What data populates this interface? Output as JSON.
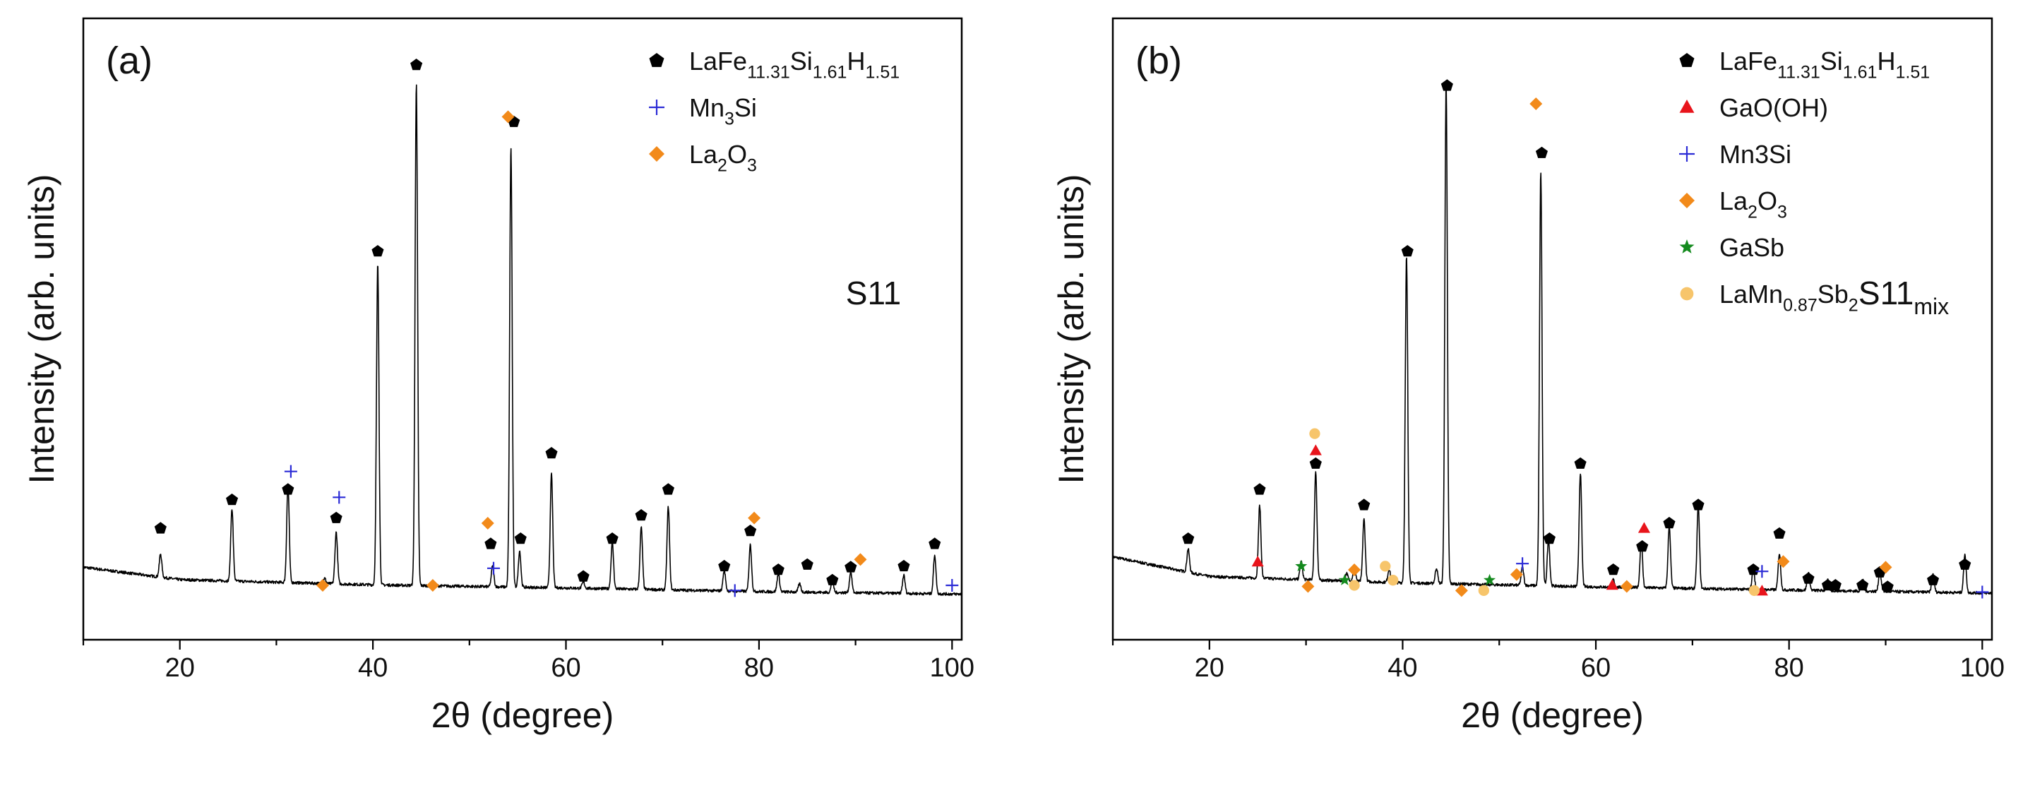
{
  "figure": {
    "description": "Two-panel XRD patterns",
    "xlabel": "2θ (degree)",
    "ylabel": "Intensity (arb. units)"
  },
  "chart_data": [
    {
      "type": "line",
      "panel_label": "(a)",
      "sample_label": {
        "base": "S11",
        "sub": ""
      },
      "xlabel": "2θ (degree)",
      "ylabel": "Intensity (arb. units)",
      "xlim": [
        10,
        101
      ],
      "ylim": [
        -8,
        112
      ],
      "xticks": [
        20,
        40,
        60,
        80,
        100
      ],
      "baseline": {
        "x": [
          10,
          20,
          40,
          60,
          80,
          101
        ],
        "y": [
          6,
          3.6,
          2.6,
          2.0,
          1.3,
          0.8
        ]
      },
      "peaks": [
        {
          "x": 18.0,
          "h": 4.5
        },
        {
          "x": 25.4,
          "h": 14
        },
        {
          "x": 31.2,
          "h": 19
        },
        {
          "x": 35.0,
          "h": 1.0
        },
        {
          "x": 36.2,
          "h": 10
        },
        {
          "x": 40.5,
          "h": 62
        },
        {
          "x": 44.5,
          "h": 97
        },
        {
          "x": 46.2,
          "h": 0.6
        },
        {
          "x": 52.4,
          "h": 4
        },
        {
          "x": 54.3,
          "h": 85
        },
        {
          "x": 55.2,
          "h": 7
        },
        {
          "x": 58.5,
          "h": 22
        },
        {
          "x": 61.8,
          "h": 1.2
        },
        {
          "x": 64.8,
          "h": 9
        },
        {
          "x": 67.8,
          "h": 12
        },
        {
          "x": 70.6,
          "h": 16
        },
        {
          "x": 76.4,
          "h": 4
        },
        {
          "x": 79.1,
          "h": 9
        },
        {
          "x": 82.0,
          "h": 3.5
        },
        {
          "x": 84.2,
          "h": 1.6
        },
        {
          "x": 87.6,
          "h": 2.2
        },
        {
          "x": 89.5,
          "h": 4
        },
        {
          "x": 95.0,
          "h": 3.5
        },
        {
          "x": 98.2,
          "h": 7.5
        }
      ],
      "markers": [
        {
          "phase": 0,
          "points": [
            [
              18.0,
              13.5
            ],
            [
              25.4,
              19
            ],
            [
              31.2,
              21
            ],
            [
              36.2,
              15.5
            ],
            [
              40.5,
              67
            ],
            [
              44.5,
              103
            ],
            [
              52.2,
              10.5
            ],
            [
              54.6,
              92
            ],
            [
              55.3,
              11.5
            ],
            [
              58.5,
              28
            ],
            [
              61.8,
              4.2
            ],
            [
              64.8,
              11.5
            ],
            [
              67.8,
              16
            ],
            [
              70.6,
              21
            ],
            [
              76.4,
              6.2
            ],
            [
              79.1,
              13
            ],
            [
              82.0,
              5.5
            ],
            [
              85.0,
              6.5
            ],
            [
              87.6,
              3.5
            ],
            [
              89.5,
              6
            ],
            [
              95.0,
              6.2
            ],
            [
              98.2,
              10.5
            ]
          ]
        },
        {
          "phase": 1,
          "points": [
            [
              31.5,
              24.5
            ],
            [
              36.5,
              19.5
            ],
            [
              52.5,
              5.8
            ],
            [
              77.5,
              1.5
            ],
            [
              100.0,
              2.5
            ]
          ]
        },
        {
          "phase": 2,
          "points": [
            [
              34.8,
              2.5
            ],
            [
              46.2,
              2.5
            ],
            [
              51.9,
              14.5
            ],
            [
              54.0,
              93
            ],
            [
              79.5,
              15.5
            ],
            [
              90.5,
              7.5
            ]
          ]
        }
      ],
      "legend": [
        {
          "symbol": "pentagon",
          "color": "#000000",
          "label": {
            "base": "LaFe",
            "parts": [
              [
                "11.31",
                "Si"
              ],
              [
                "1.61",
                "H"
              ],
              [
                "1.51",
                ""
              ]
            ]
          }
        },
        {
          "symbol": "plus",
          "color": "#2b2bd6",
          "label": {
            "base": "Mn",
            "parts": [
              [
                "3",
                "Si"
              ]
            ]
          }
        },
        {
          "symbol": "diamond",
          "color": "#f28a1a",
          "label": {
            "base": "La",
            "parts": [
              [
                "2",
                "O"
              ],
              [
                "3",
                ""
              ]
            ]
          }
        }
      ]
    },
    {
      "type": "line",
      "panel_label": "(b)",
      "sample_label": {
        "base": "S11",
        "sub": "mix"
      },
      "xlabel": "2θ (degree)",
      "ylabel": "Intensity (arb. units)",
      "xlim": [
        10,
        101
      ],
      "ylim": [
        -8,
        112
      ],
      "xticks": [
        20,
        40,
        60,
        80,
        100
      ],
      "baseline": {
        "x": [
          10,
          20,
          40,
          60,
          80,
          101
        ],
        "y": [
          8,
          4.2,
          3.0,
          2.2,
          1.6,
          1.0
        ]
      },
      "peaks": [
        {
          "x": 17.8,
          "h": 4.5
        },
        {
          "x": 25.2,
          "h": 14
        },
        {
          "x": 29.5,
          "h": 3.5
        },
        {
          "x": 31.0,
          "h": 21
        },
        {
          "x": 34.2,
          "h": 1.5
        },
        {
          "x": 35.0,
          "h": 3
        },
        {
          "x": 36.0,
          "h": 12
        },
        {
          "x": 38.6,
          "h": 2.5
        },
        {
          "x": 40.4,
          "h": 63
        },
        {
          "x": 43.5,
          "h": 3
        },
        {
          "x": 44.5,
          "h": 97
        },
        {
          "x": 52.4,
          "h": 3.5
        },
        {
          "x": 54.3,
          "h": 80
        },
        {
          "x": 55.1,
          "h": 9
        },
        {
          "x": 58.4,
          "h": 22
        },
        {
          "x": 61.8,
          "h": 1.5
        },
        {
          "x": 64.7,
          "h": 9
        },
        {
          "x": 67.6,
          "h": 12
        },
        {
          "x": 70.6,
          "h": 16
        },
        {
          "x": 76.3,
          "h": 4
        },
        {
          "x": 79.0,
          "h": 7
        },
        {
          "x": 82.0,
          "h": 3.5
        },
        {
          "x": 84.0,
          "h": 2
        },
        {
          "x": 87.6,
          "h": 2.3
        },
        {
          "x": 89.4,
          "h": 4
        },
        {
          "x": 94.9,
          "h": 3.5
        },
        {
          "x": 98.2,
          "h": 7.5
        }
      ],
      "markers": [
        {
          "phase": 0,
          "points": [
            [
              17.8,
              11.5
            ],
            [
              25.2,
              21
            ],
            [
              31.0,
              26
            ],
            [
              36.0,
              18
            ],
            [
              40.5,
              67
            ],
            [
              44.6,
              99
            ],
            [
              54.4,
              86
            ],
            [
              55.2,
              11.5
            ],
            [
              58.4,
              26
            ],
            [
              61.8,
              5.5
            ],
            [
              64.8,
              10
            ],
            [
              67.6,
              14.5
            ],
            [
              70.6,
              18
            ],
            [
              76.3,
              5.5
            ],
            [
              79.0,
              12.5
            ],
            [
              82.0,
              3.8
            ],
            [
              84.0,
              2.5
            ],
            [
              84.8,
              2.5
            ],
            [
              87.6,
              2.5
            ],
            [
              89.4,
              5
            ],
            [
              90.2,
              2.2
            ],
            [
              94.9,
              3.5
            ],
            [
              98.2,
              6.5
            ]
          ]
        },
        {
          "phase": 1,
          "points": [
            [
              25.0,
              7
            ],
            [
              31.0,
              28.5
            ],
            [
              61.7,
              2.5
            ],
            [
              65.0,
              13.5
            ],
            [
              77.2,
              1.4
            ]
          ]
        },
        {
          "phase": 2,
          "points": [
            [
              52.4,
              6.7
            ],
            [
              77.2,
              5.2
            ],
            [
              100.0,
              1.2
            ]
          ]
        },
        {
          "phase": 3,
          "points": [
            [
              30.2,
              2.3
            ],
            [
              35.0,
              5.5
            ],
            [
              46.1,
              1.5
            ],
            [
              51.8,
              4.6
            ],
            [
              53.8,
              95.5
            ],
            [
              63.2,
              2.3
            ],
            [
              79.4,
              7.1
            ],
            [
              90.0,
              6
            ]
          ]
        },
        {
          "phase": 4,
          "points": [
            [
              29.5,
              6.2
            ],
            [
              34.0,
              3.5
            ],
            [
              49.0,
              3.5
            ]
          ]
        },
        {
          "phase": 5,
          "points": [
            [
              30.9,
              31.8
            ],
            [
              35.0,
              2.5
            ],
            [
              38.2,
              6.2
            ],
            [
              39.0,
              3.5
            ],
            [
              48.4,
              1.5
            ],
            [
              76.4,
              1.5
            ]
          ]
        }
      ],
      "legend": [
        {
          "symbol": "pentagon",
          "color": "#000000",
          "label": {
            "base": "LaFe",
            "parts": [
              [
                "11.31",
                "Si"
              ],
              [
                "1.61",
                "H"
              ],
              [
                "1.51",
                ""
              ]
            ]
          }
        },
        {
          "symbol": "triangle",
          "color": "#e8141b",
          "label": {
            "base": "GaO(OH)",
            "parts": []
          }
        },
        {
          "symbol": "plus",
          "color": "#2b2bd6",
          "label": {
            "base": "Mn3Si",
            "parts": []
          }
        },
        {
          "symbol": "diamond",
          "color": "#f28a1a",
          "label": {
            "base": "La",
            "parts": [
              [
                "2",
                "O"
              ],
              [
                "3",
                ""
              ]
            ]
          }
        },
        {
          "symbol": "star",
          "color": "#148a1e",
          "label": {
            "base": "GaSb",
            "parts": []
          }
        },
        {
          "symbol": "circle",
          "color": "#f7c56b",
          "label": {
            "base": "LaMn",
            "parts": [
              [
                "0.87",
                "Sb"
              ],
              [
                "2",
                ""
              ]
            ]
          }
        }
      ]
    }
  ]
}
